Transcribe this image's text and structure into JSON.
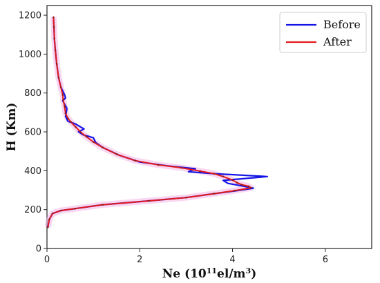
{
  "chart_data": {
    "type": "line",
    "xlabel": "Ne (10",
    "xlabel_sup": "11",
    "xlabel_unit": "el/m",
    "xlabel_unit_sup": "3",
    "xlabel_close": ")",
    "ylabel": "H (Km)",
    "xlim": [
      0,
      7
    ],
    "ylim": [
      0,
      1250
    ],
    "x_ticks": [
      0,
      2,
      4,
      6
    ],
    "y_ticks": [
      0,
      200,
      400,
      600,
      800,
      1000,
      1200
    ],
    "legend_position": "top-right",
    "grid": false,
    "series": [
      {
        "name": "Before",
        "color": "#1414e6",
        "points": [
          [
            0.02,
            110
          ],
          [
            0.05,
            150
          ],
          [
            0.12,
            180
          ],
          [
            0.3,
            195
          ],
          [
            0.6,
            205
          ],
          [
            1.2,
            225
          ],
          [
            2.2,
            245
          ],
          [
            3.0,
            262
          ],
          [
            3.6,
            282
          ],
          [
            4.1,
            298
          ],
          [
            4.45,
            310
          ],
          [
            4.2,
            322
          ],
          [
            3.9,
            335
          ],
          [
            3.8,
            350
          ],
          [
            4.75,
            370
          ],
          [
            3.6,
            385
          ],
          [
            3.05,
            395
          ],
          [
            3.2,
            410
          ],
          [
            2.6,
            425
          ],
          [
            2.0,
            445
          ],
          [
            1.55,
            480
          ],
          [
            1.2,
            520
          ],
          [
            1.05,
            545
          ],
          [
            1.0,
            570
          ],
          [
            0.78,
            585
          ],
          [
            0.68,
            600
          ],
          [
            0.8,
            615
          ],
          [
            0.62,
            640
          ],
          [
            0.45,
            655
          ],
          [
            0.4,
            680
          ],
          [
            0.43,
            720
          ],
          [
            0.34,
            760
          ],
          [
            0.4,
            775
          ],
          [
            0.38,
            790
          ],
          [
            0.3,
            830
          ],
          [
            0.25,
            880
          ],
          [
            0.21,
            950
          ],
          [
            0.18,
            1020
          ],
          [
            0.16,
            1080
          ],
          [
            0.15,
            1140
          ],
          [
            0.14,
            1190
          ]
        ]
      },
      {
        "name": "After",
        "color": "#e31a1c",
        "points": [
          [
            0.02,
            110
          ],
          [
            0.05,
            150
          ],
          [
            0.12,
            180
          ],
          [
            0.3,
            195
          ],
          [
            0.6,
            205
          ],
          [
            1.2,
            225
          ],
          [
            2.2,
            245
          ],
          [
            3.0,
            262
          ],
          [
            3.6,
            282
          ],
          [
            4.05,
            298
          ],
          [
            4.4,
            312
          ],
          [
            4.35,
            320
          ],
          [
            4.2,
            328
          ],
          [
            4.1,
            338
          ],
          [
            4.0,
            352
          ],
          [
            3.8,
            370
          ],
          [
            3.6,
            385
          ],
          [
            3.3,
            398
          ],
          [
            2.9,
            415
          ],
          [
            2.4,
            430
          ],
          [
            1.9,
            452
          ],
          [
            1.5,
            485
          ],
          [
            1.2,
            520
          ],
          [
            1.0,
            548
          ],
          [
            0.85,
            575
          ],
          [
            0.72,
            600
          ],
          [
            0.62,
            625
          ],
          [
            0.52,
            650
          ],
          [
            0.45,
            670
          ],
          [
            0.4,
            695
          ],
          [
            0.38,
            730
          ],
          [
            0.35,
            765
          ],
          [
            0.34,
            790
          ],
          [
            0.3,
            830
          ],
          [
            0.25,
            880
          ],
          [
            0.21,
            950
          ],
          [
            0.18,
            1020
          ],
          [
            0.16,
            1080
          ],
          [
            0.15,
            1140
          ],
          [
            0.14,
            1190
          ]
        ]
      }
    ]
  }
}
